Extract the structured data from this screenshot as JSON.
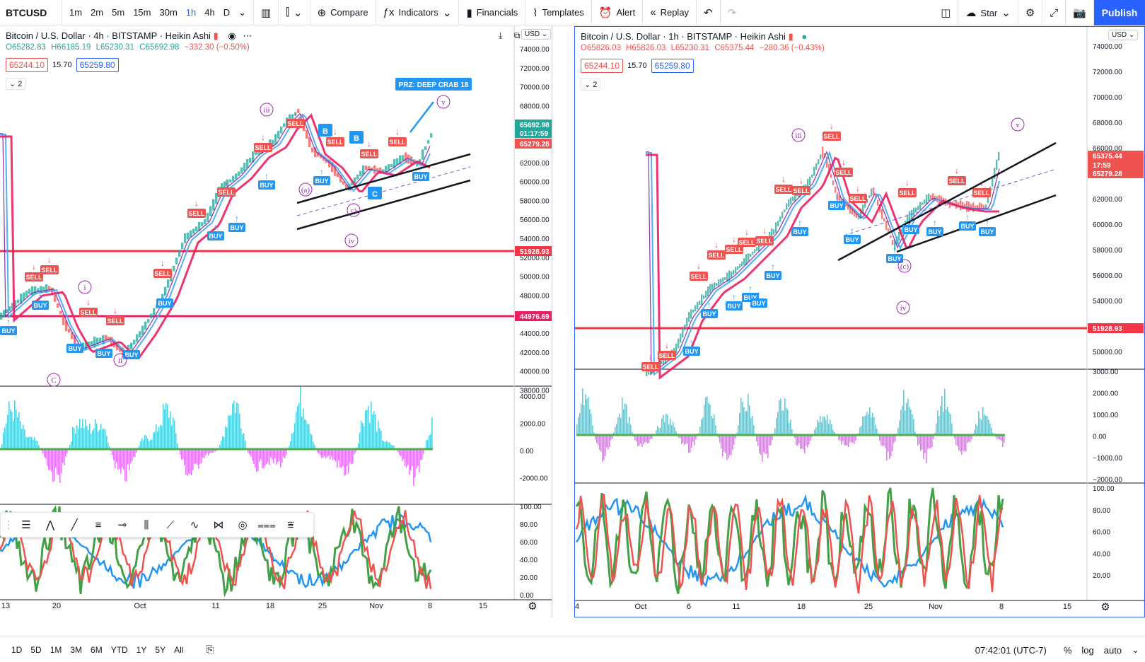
{
  "toolbar": {
    "symbol": "BTCUSD",
    "intervals": [
      "1m",
      "2m",
      "5m",
      "15m",
      "30m",
      "1h",
      "4h",
      "D"
    ],
    "active_interval": "1h",
    "compare": "Compare",
    "indicators": "Indicators",
    "financials": "Financials",
    "templates": "Templates",
    "alert": "Alert",
    "replay": "Replay",
    "star": "Star",
    "publish": "Publish"
  },
  "left_chart": {
    "title": "Bitcoin / U.S. Dollar · 4h · BITSTAMP · Heikin Ashi",
    "ohlc": {
      "o": "O65282.83",
      "h": "H66185.19",
      "l": "L65230.31",
      "c": "C65692.98",
      "chg": "−332.30 (−0.50%)"
    },
    "bid": "65244.10",
    "spread": "15.70",
    "ask": "65259.80",
    "collapse": "2",
    "currency": "USD",
    "price_ticks": [
      "74000.00",
      "72000.00",
      "70000.00",
      "68000.00",
      "66000.00",
      "64000.00",
      "62000.00",
      "60000.00",
      "58000.00",
      "56000.00",
      "54000.00",
      "52000.00",
      "50000.00",
      "48000.00",
      "46000.00",
      "44000.00",
      "42000.00",
      "40000.00",
      "38000.00"
    ],
    "price_labels": {
      "last": "65692.98",
      "countdown": "01:17:59",
      "prev": "65279.28",
      "red_line": "51928.93",
      "pink_line": "44976.69"
    },
    "osc_ticks": [
      "4000.00",
      "2000.00",
      "0.00",
      "-2000.00"
    ],
    "stoch_ticks": [
      "100.00",
      "80.00",
      "60.00",
      "40.00",
      "20.00",
      "0.00"
    ],
    "time_labels": [
      "13",
      "20",
      "Oct",
      "11",
      "18",
      "25",
      "Nov",
      "8",
      "15"
    ],
    "annotation": "PRZ: DEEP CRAB 18",
    "waves": [
      "iii",
      "(a)",
      "c)",
      "iv",
      "v",
      "i",
      "ii",
      "C"
    ],
    "letters": [
      "B",
      "B",
      "C"
    ]
  },
  "right_chart": {
    "title": "Bitcoin / U.S. Dollar · 1h · BITSTAMP · Heikin Ashi",
    "ohlc": {
      "o": "O65826.03",
      "h": "H65826.03",
      "l": "L65230.31",
      "c": "C65375.44",
      "chg": "−280.36 (−0.43%)"
    },
    "bid": "65244.10",
    "spread": "15.70",
    "ask": "65259.80",
    "collapse": "2",
    "currency": "USD",
    "price_ticks": [
      "74000.00",
      "72000.00",
      "70000.00",
      "68000.00",
      "66000.00",
      "64000.00",
      "62000.00",
      "60000.00",
      "58000.00",
      "56000.00",
      "54000.00",
      "52000.00",
      "50000.00"
    ],
    "price_labels": {
      "last": "65375.44",
      "countdown": "17:59",
      "prev": "65279.28",
      "red_line": "51928.93"
    },
    "osc_ticks": [
      "3000.00",
      "2000.00",
      "1000.00",
      "0.00",
      "−1000.00",
      "−2000.00"
    ],
    "stoch_ticks": [
      "100.00",
      "80.00",
      "60.00",
      "40.00",
      "20.00"
    ],
    "time_labels": [
      "4",
      "Oct",
      "6",
      "11",
      "18",
      "25",
      "Nov",
      "8",
      "15"
    ],
    "waves": [
      "iii",
      "(c)",
      "iv",
      "v"
    ]
  },
  "signals": {
    "buy": "BUY",
    "sell": "SELL"
  },
  "bottom": {
    "ranges": [
      "1D",
      "5D",
      "1M",
      "3M",
      "6M",
      "YTD",
      "1Y",
      "5Y",
      "All"
    ],
    "time": "07:42:01 (UTC-7)",
    "percent": "%",
    "log": "log",
    "auto": "auto"
  },
  "colors": {
    "accent": "#2962ff",
    "up": "#26a69a",
    "down": "#ef5350",
    "red_line": "#f23645",
    "pink_line": "#e91e63"
  }
}
